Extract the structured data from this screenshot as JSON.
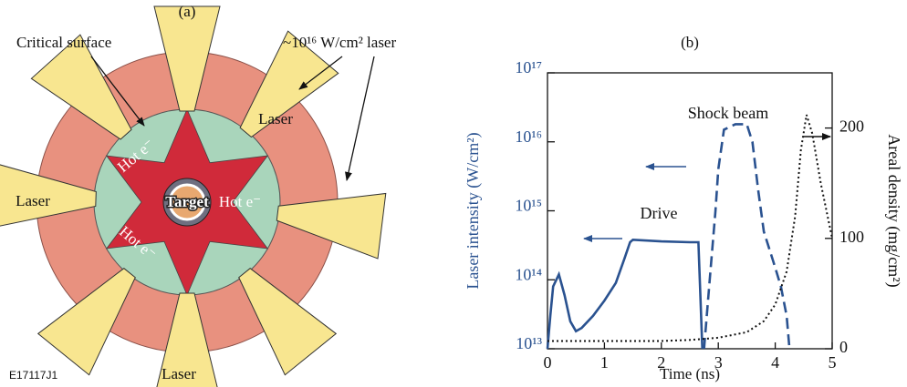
{
  "figure_id": "E17117J1",
  "panel_a": {
    "label": "(a)",
    "critical_surface": "Critical surface",
    "laser_intensity": "~10¹⁶ W/cm² laser",
    "lasers": [
      "Laser",
      "Laser",
      "Laser"
    ],
    "hot_electrons": [
      "Hot e⁻",
      "Hot e⁻",
      "Hot e⁻"
    ],
    "target": "Target"
  },
  "chart_data": {
    "type": "line",
    "title": "(b)",
    "x_label": "Time (ns)",
    "y_label": "Laser intensity (W/cm²)",
    "y2_label": "Areal density (mg/cm²)",
    "xlim": [
      0,
      5
    ],
    "xticks": [
      0,
      1,
      2,
      3,
      4,
      5
    ],
    "ylim": [
      10000000000000.0,
      1e+17
    ],
    "yscale": "log",
    "yticks": [
      {
        "value": 10000000000000.0,
        "label": "10¹³"
      },
      {
        "value": 100000000000000.0,
        "label": "10¹⁴"
      },
      {
        "value": 1000000000000000.0,
        "label": "10¹⁵"
      },
      {
        "value": 1e+16,
        "label": "10¹⁶"
      },
      {
        "value": 1e+17,
        "label": "10¹⁷"
      }
    ],
    "y2lim": [
      0,
      250
    ],
    "y2ticks": [
      0,
      100,
      200
    ],
    "y_color": "#2a5290",
    "series": [
      {
        "name": "Drive",
        "color": "#2a5290",
        "style": "solid",
        "x": [
          0,
          0.05,
          0.1,
          0.2,
          0.3,
          0.4,
          0.5,
          0.6,
          0.8,
          1.0,
          1.2,
          1.35,
          1.45,
          1.5,
          2.0,
          2.5,
          2.65,
          2.72
        ],
        "values": [
          10000000000000.0,
          30000000000000.0,
          80000000000000.0,
          120000000000000.0,
          60000000000000.0,
          25000000000000.0,
          18000000000000.0,
          20000000000000.0,
          30000000000000.0,
          50000000000000.0,
          90000000000000.0,
          200000000000000.0,
          350000000000000.0,
          380000000000000.0,
          360000000000000.0,
          350000000000000.0,
          350000000000000.0,
          10000000000000.0
        ]
      },
      {
        "name": "Shock beam",
        "color": "#2a5290",
        "style": "dashed",
        "x": [
          2.75,
          2.85,
          2.95,
          3.0,
          3.1,
          3.3,
          3.5,
          3.6,
          3.7,
          3.8,
          4.0,
          4.1,
          4.2,
          4.25
        ],
        "values": [
          10000000000000.0,
          100000000000000.0,
          1000000000000000.0,
          4000000000000000.0,
          1.5e+16,
          1.8e+16,
          1.8e+16,
          1e+16,
          2000000000000000.0,
          500000000000000.0,
          150000000000000.0,
          80000000000000.0,
          30000000000000.0,
          10000000000000.0
        ]
      },
      {
        "color": "#111111",
        "style": "dotted",
        "axis": "y2",
        "x": [
          0,
          1,
          2,
          2.5,
          3,
          3.5,
          3.8,
          4.0,
          4.2,
          4.35,
          4.45,
          4.55,
          4.65,
          4.8,
          5.0
        ],
        "values": [
          7,
          7,
          7,
          8,
          10,
          15,
          25,
          40,
          70,
          120,
          180,
          212,
          195,
          150,
          100
        ]
      }
    ]
  }
}
